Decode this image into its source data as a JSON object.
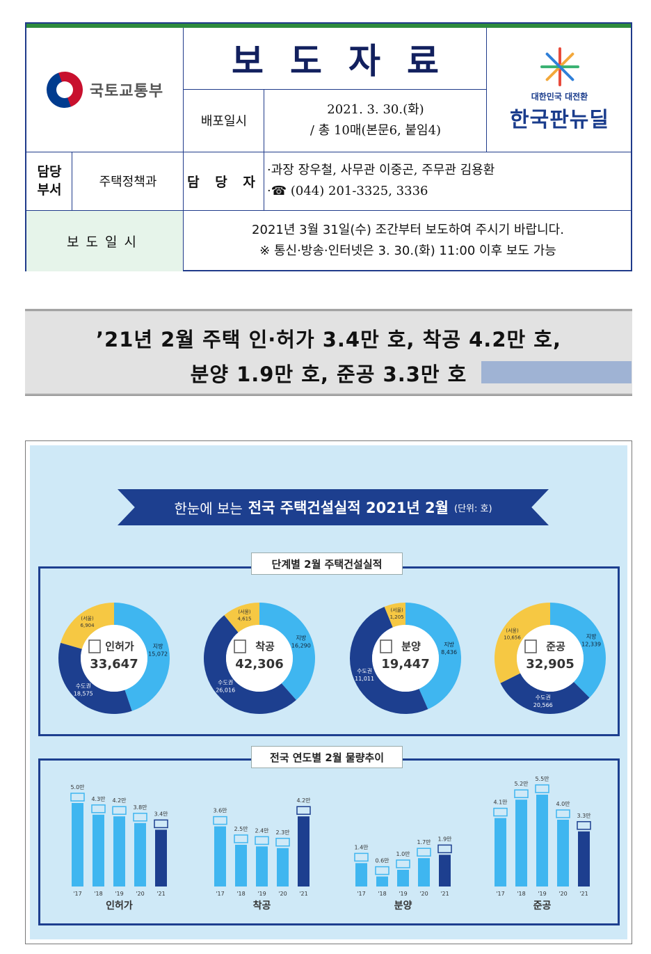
{
  "header": {
    "ministry_name": "국토교통부",
    "doc_title": "보도자료",
    "distribution_label": "배포일시",
    "distribution_date": "2021. 3. 30.(화)",
    "distribution_pages": "/ 총 10매(본문6, 붙임4)",
    "newdeal_sub": "대한민국 대전환",
    "newdeal_main": "한국판뉴딜",
    "dept_label_1": "담당",
    "dept_label_2": "부서",
    "dept_value": "주택정책과",
    "manager_label": "담 당 자",
    "manager_line1": "·과장 장우철, 사무관 이중곤, 주무관 김용환",
    "manager_line2": "·☎ (044) 201-3325, 3336",
    "release_label": "보도일시",
    "release_line1": "2021년 3월 31일(수) 조간부터 보도하여 주시기 바랍니다.",
    "release_line2": "※ 통신·방송·인터넷은 3. 30.(화) 11:00 이후 보도 가능"
  },
  "headline": {
    "line1": "’21년 2월 주택 인·허가 3.4만 호, 착공 4.2만 호,",
    "line2": "분양 1.9만 호, 준공 3.3만 호"
  },
  "infographic": {
    "banner_pre": "한눈에 보는",
    "banner_main": "전국 주택건설실적 2021년 2월",
    "banner_unit": "(단위: 호)",
    "panel1_title": "단계별 2월 주택건설실적",
    "panel2_title": "전국 연도별 2월 물량추이"
  },
  "chart_data": [
    {
      "type": "pie",
      "title": "단계별 2월 주택건설실적",
      "charts": [
        {
          "name": "인허가",
          "total": "33,647",
          "slices": [
            {
              "label": "지방",
              "value": 15072,
              "text": "15,072",
              "color": "#3fb6f0"
            },
            {
              "label": "수도권",
              "value": 18575,
              "text": "18,575",
              "color": "#1d3f8f"
            },
            {
              "label": "(서울)",
              "value": 6904,
              "text": "6,904",
              "color": "#f6c843"
            }
          ]
        },
        {
          "name": "착공",
          "total": "42,306",
          "slices": [
            {
              "label": "지방",
              "value": 16290,
              "text": "16,290",
              "color": "#3fb6f0"
            },
            {
              "label": "수도권",
              "value": 26016,
              "text": "26,016",
              "color": "#1d3f8f"
            },
            {
              "label": "(서울)",
              "value": 4615,
              "text": "4,615",
              "color": "#f6c843"
            }
          ]
        },
        {
          "name": "분양",
          "total": "19,447",
          "slices": [
            {
              "label": "지방",
              "value": 8436,
              "text": "8,436",
              "color": "#3fb6f0"
            },
            {
              "label": "수도권",
              "value": 11011,
              "text": "11,011",
              "color": "#1d3f8f"
            },
            {
              "label": "(서울)",
              "value": 1205,
              "text": "1,205",
              "color": "#f6c843"
            }
          ]
        },
        {
          "name": "준공",
          "total": "32,905",
          "slices": [
            {
              "label": "지방",
              "value": 12339,
              "text": "12,339",
              "color": "#3fb6f0"
            },
            {
              "label": "수도권",
              "value": 20566,
              "text": "20,566",
              "color": "#1d3f8f"
            },
            {
              "label": "(서울)",
              "value": 10656,
              "text": "10,656",
              "color": "#f6c843"
            }
          ]
        }
      ]
    },
    {
      "type": "bar",
      "title": "전국 연도별 2월 물량추이",
      "categories": [
        "'17",
        "'18",
        "'19",
        "'20",
        "'21"
      ],
      "unit": "만",
      "groups": [
        {
          "name": "인허가",
          "values": [
            5.0,
            4.3,
            4.2,
            3.8,
            3.4
          ],
          "labels": [
            "5.0만",
            "4.3만",
            "4.2만",
            "3.8만",
            "3.4만"
          ]
        },
        {
          "name": "착공",
          "values": [
            3.6,
            2.5,
            2.4,
            2.3,
            4.2
          ],
          "labels": [
            "3.6만",
            "2.5만",
            "2.4만",
            "2.3만",
            "4.2만"
          ]
        },
        {
          "name": "분양",
          "values": [
            1.4,
            0.6,
            1.0,
            1.7,
            1.9
          ],
          "labels": [
            "1.4만",
            "0.6만",
            "1.0만",
            "1.7만",
            "1.9만"
          ]
        },
        {
          "name": "준공",
          "values": [
            4.1,
            5.2,
            5.5,
            4.0,
            3.3
          ],
          "labels": [
            "4.1만",
            "5.2만",
            "5.5만",
            "4.0만",
            "3.3만"
          ]
        }
      ],
      "colors": {
        "past": "#3fb6f0",
        "current": "#1d3f8f"
      }
    }
  ]
}
